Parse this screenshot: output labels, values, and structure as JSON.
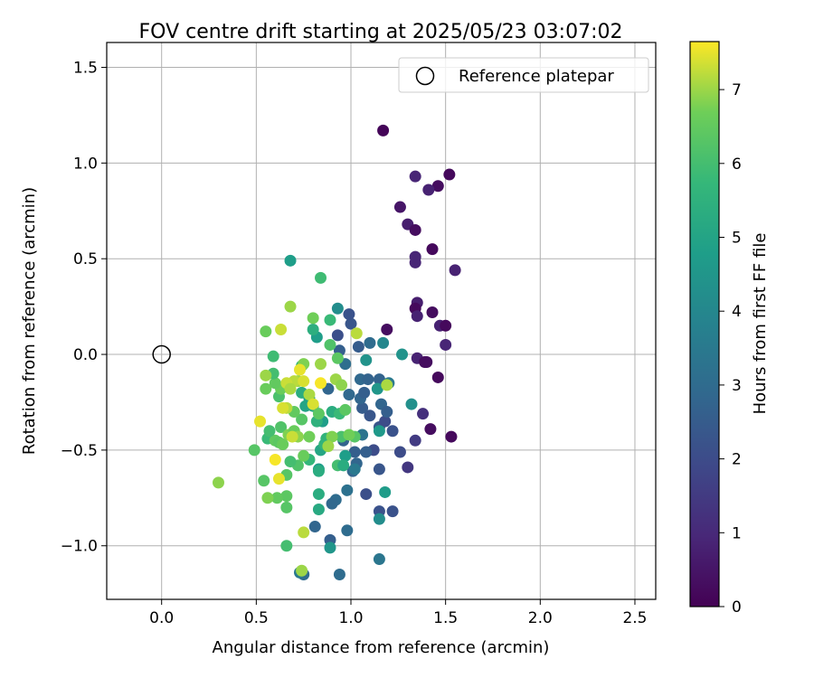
{
  "chart_data": {
    "type": "scatter",
    "title": "FOV centre drift starting at 2025/05/23 03:07:02",
    "xlabel": "Angular distance from reference (arcmin)",
    "ylabel": "Rotation from reference (arcmin)",
    "xlim": [
      -0.29,
      2.61
    ],
    "ylim": [
      -1.28,
      1.63
    ],
    "xticks": [
      0.0,
      0.5,
      1.0,
      1.5,
      2.0,
      2.5
    ],
    "xtick_labels": [
      "0.0",
      "0.5",
      "1.0",
      "1.5",
      "2.0",
      "2.5"
    ],
    "yticks": [
      -1.0,
      -0.5,
      0.0,
      0.5,
      1.0,
      1.5
    ],
    "ytick_labels": [
      "−1.0",
      "−0.5",
      "0.0",
      "0.5",
      "1.0",
      "1.5"
    ],
    "grid": true,
    "legend": {
      "placement": "top-right",
      "entries": [
        "Reference platepar"
      ]
    },
    "reference_point": {
      "name": "Reference platepar",
      "x": 0.0,
      "y": 0.0
    },
    "colorbar": {
      "label": "Hours from first FF file",
      "range": [
        0,
        7.65
      ],
      "ticks": [
        0,
        1,
        2,
        3,
        4,
        5,
        6,
        7
      ],
      "tick_labels": [
        "0",
        "1",
        "2",
        "3",
        "4",
        "5",
        "6",
        "7"
      ],
      "colormap": "viridis"
    },
    "points": [
      {
        "x": 1.17,
        "y": 1.17,
        "c": 0.1
      },
      {
        "x": 1.52,
        "y": 0.94,
        "c": 0.2
      },
      {
        "x": 1.34,
        "y": 0.93,
        "c": 0.9
      },
      {
        "x": 1.46,
        "y": 0.88,
        "c": 0.3
      },
      {
        "x": 1.41,
        "y": 0.86,
        "c": 0.8
      },
      {
        "x": 1.26,
        "y": 0.77,
        "c": 0.5
      },
      {
        "x": 1.3,
        "y": 0.68,
        "c": 0.7
      },
      {
        "x": 1.34,
        "y": 0.65,
        "c": 0.3
      },
      {
        "x": 1.43,
        "y": 0.55,
        "c": 0.2
      },
      {
        "x": 1.34,
        "y": 0.51,
        "c": 0.9
      },
      {
        "x": 1.34,
        "y": 0.48,
        "c": 0.9
      },
      {
        "x": 1.55,
        "y": 0.44,
        "c": 0.8
      },
      {
        "x": 1.35,
        "y": 0.27,
        "c": 0.7
      },
      {
        "x": 1.34,
        "y": 0.24,
        "c": 0.2
      },
      {
        "x": 1.43,
        "y": 0.22,
        "c": 0.3
      },
      {
        "x": 1.35,
        "y": 0.2,
        "c": 0.8
      },
      {
        "x": 1.47,
        "y": 0.15,
        "c": 0.8
      },
      {
        "x": 1.5,
        "y": 0.15,
        "c": 0.2
      },
      {
        "x": 1.19,
        "y": 0.13,
        "c": 0.3
      },
      {
        "x": 1.5,
        "y": 0.05,
        "c": 0.9
      },
      {
        "x": 1.35,
        "y": -0.02,
        "c": 0.8
      },
      {
        "x": 1.39,
        "y": -0.04,
        "c": 0.3
      },
      {
        "x": 1.4,
        "y": -0.04,
        "c": 0.3
      },
      {
        "x": 1.46,
        "y": -0.12,
        "c": 0.2
      },
      {
        "x": 1.38,
        "y": -0.31,
        "c": 1.2
      },
      {
        "x": 1.42,
        "y": -0.39,
        "c": 0.3
      },
      {
        "x": 1.53,
        "y": -0.43,
        "c": 0.2
      },
      {
        "x": 1.34,
        "y": -0.45,
        "c": 1.5
      },
      {
        "x": 1.3,
        "y": -0.59,
        "c": 1.4
      },
      {
        "x": 1.26,
        "y": -0.51,
        "c": 2.0
      },
      {
        "x": 1.22,
        "y": -0.82,
        "c": 2.2
      },
      {
        "x": 1.15,
        "y": -0.82,
        "c": 2.2
      },
      {
        "x": 1.15,
        "y": -0.6,
        "c": 2.3
      },
      {
        "x": 1.15,
        "y": -0.38,
        "c": 2.3
      },
      {
        "x": 1.18,
        "y": -0.35,
        "c": 2.0
      },
      {
        "x": 1.22,
        "y": -0.4,
        "c": 2.2
      },
      {
        "x": 1.12,
        "y": -0.5,
        "c": 2.0
      },
      {
        "x": 1.08,
        "y": -0.73,
        "c": 2.1
      },
      {
        "x": 1.08,
        "y": -0.51,
        "c": 2.6
      },
      {
        "x": 1.1,
        "y": -0.32,
        "c": 2.3
      },
      {
        "x": 1.06,
        "y": -0.28,
        "c": 2.5
      },
      {
        "x": 1.05,
        "y": -0.23,
        "c": 2.8
      },
      {
        "x": 1.07,
        "y": -0.2,
        "c": 2.6
      },
      {
        "x": 1.05,
        "y": -0.13,
        "c": 2.9
      },
      {
        "x": 1.09,
        "y": -0.13,
        "c": 2.7
      },
      {
        "x": 1.15,
        "y": -0.13,
        "c": 2.7
      },
      {
        "x": 1.16,
        "y": -0.26,
        "c": 2.8
      },
      {
        "x": 1.19,
        "y": -0.3,
        "c": 2.6
      },
      {
        "x": 1.2,
        "y": -0.15,
        "c": 3.5
      },
      {
        "x": 1.1,
        "y": 0.06,
        "c": 3.0
      },
      {
        "x": 1.04,
        "y": 0.04,
        "c": 2.5
      },
      {
        "x": 1.0,
        "y": 0.16,
        "c": 2.3
      },
      {
        "x": 0.99,
        "y": 0.21,
        "c": 2.2
      },
      {
        "x": 0.93,
        "y": 0.1,
        "c": 2.1
      },
      {
        "x": 0.94,
        "y": 0.02,
        "c": 2.6
      },
      {
        "x": 1.17,
        "y": 0.06,
        "c": 4.0
      },
      {
        "x": 1.08,
        "y": -0.03,
        "c": 4.4
      },
      {
        "x": 1.14,
        "y": -0.18,
        "c": 4.5
      },
      {
        "x": 1.32,
        "y": -0.26,
        "c": 4.3
      },
      {
        "x": 1.27,
        "y": 0.0,
        "c": 4.4
      },
      {
        "x": 0.93,
        "y": 0.24,
        "c": 4.2
      },
      {
        "x": 0.97,
        "y": -0.05,
        "c": 3.1
      },
      {
        "x": 0.99,
        "y": -0.21,
        "c": 2.9
      },
      {
        "x": 0.88,
        "y": -0.18,
        "c": 2.8
      },
      {
        "x": 0.96,
        "y": -0.45,
        "c": 2.7
      },
      {
        "x": 1.02,
        "y": -0.51,
        "c": 2.6
      },
      {
        "x": 1.03,
        "y": -0.57,
        "c": 2.8
      },
      {
        "x": 1.01,
        "y": -0.61,
        "c": 2.8
      },
      {
        "x": 0.98,
        "y": -0.71,
        "c": 3.2
      },
      {
        "x": 0.92,
        "y": -0.76,
        "c": 3.0
      },
      {
        "x": 0.9,
        "y": -0.78,
        "c": 2.9
      },
      {
        "x": 0.98,
        "y": -0.92,
        "c": 3.0
      },
      {
        "x": 0.89,
        "y": -0.97,
        "c": 2.6
      },
      {
        "x": 0.81,
        "y": -0.9,
        "c": 2.8
      },
      {
        "x": 0.75,
        "y": -1.15,
        "c": 3.0
      },
      {
        "x": 0.73,
        "y": -1.14,
        "c": 3.5
      },
      {
        "x": 0.94,
        "y": -1.15,
        "c": 3.0
      },
      {
        "x": 1.15,
        "y": -1.07,
        "c": 3.4
      },
      {
        "x": 1.15,
        "y": -0.86,
        "c": 4.2
      },
      {
        "x": 1.18,
        "y": -0.72,
        "c": 4.7
      },
      {
        "x": 1.02,
        "y": -0.6,
        "c": 3.5
      },
      {
        "x": 1.06,
        "y": -0.42,
        "c": 3.3
      },
      {
        "x": 1.15,
        "y": -0.4,
        "c": 4.6
      },
      {
        "x": 0.89,
        "y": -1.01,
        "c": 4.5
      },
      {
        "x": 0.83,
        "y": -0.81,
        "c": 5.2
      },
      {
        "x": 0.83,
        "y": -0.73,
        "c": 5.3
      },
      {
        "x": 0.83,
        "y": -0.6,
        "c": 4.8
      },
      {
        "x": 0.83,
        "y": -0.61,
        "c": 5.3
      },
      {
        "x": 0.84,
        "y": -0.5,
        "c": 5.1
      },
      {
        "x": 0.86,
        "y": -0.47,
        "c": 5.6
      },
      {
        "x": 0.85,
        "y": -0.35,
        "c": 4.8
      },
      {
        "x": 0.82,
        "y": -0.35,
        "c": 5.5
      },
      {
        "x": 0.8,
        "y": -0.27,
        "c": 5.2
      },
      {
        "x": 0.78,
        "y": -0.23,
        "c": 4.8
      },
      {
        "x": 0.76,
        "y": -0.27,
        "c": 5.0
      },
      {
        "x": 0.74,
        "y": -0.2,
        "c": 5.3
      },
      {
        "x": 0.74,
        "y": -0.06,
        "c": 5.6
      },
      {
        "x": 0.82,
        "y": 0.09,
        "c": 4.8
      },
      {
        "x": 0.8,
        "y": 0.13,
        "c": 5.4
      },
      {
        "x": 0.84,
        "y": 0.4,
        "c": 5.9
      },
      {
        "x": 0.68,
        "y": 0.49,
        "c": 4.8
      },
      {
        "x": 0.89,
        "y": 0.18,
        "c": 5.8
      },
      {
        "x": 0.89,
        "y": 0.05,
        "c": 6.2
      },
      {
        "x": 0.93,
        "y": -0.02,
        "c": 6.4
      },
      {
        "x": 0.9,
        "y": -0.3,
        "c": 5.3
      },
      {
        "x": 0.94,
        "y": -0.31,
        "c": 5.8
      },
      {
        "x": 0.97,
        "y": -0.29,
        "c": 6.4
      },
      {
        "x": 0.95,
        "y": -0.43,
        "c": 6.1
      },
      {
        "x": 0.97,
        "y": -0.53,
        "c": 4.8
      },
      {
        "x": 0.93,
        "y": -0.58,
        "c": 6.0
      },
      {
        "x": 0.96,
        "y": -0.58,
        "c": 5.3
      },
      {
        "x": 0.87,
        "y": -0.44,
        "c": 5.6
      },
      {
        "x": 0.78,
        "y": -0.55,
        "c": 5.7
      },
      {
        "x": 0.72,
        "y": -0.58,
        "c": 6.2
      },
      {
        "x": 0.68,
        "y": -0.56,
        "c": 6.0
      },
      {
        "x": 0.66,
        "y": -0.63,
        "c": 6.3
      },
      {
        "x": 0.66,
        "y": -0.74,
        "c": 6.4
      },
      {
        "x": 0.66,
        "y": -0.8,
        "c": 6.3
      },
      {
        "x": 0.66,
        "y": -1.0,
        "c": 6.0
      },
      {
        "x": 0.61,
        "y": -0.75,
        "c": 6.5
      },
      {
        "x": 0.56,
        "y": -0.75,
        "c": 6.8
      },
      {
        "x": 0.54,
        "y": -0.66,
        "c": 6.3
      },
      {
        "x": 0.49,
        "y": -0.5,
        "c": 6.3
      },
      {
        "x": 0.56,
        "y": -0.44,
        "c": 5.8
      },
      {
        "x": 0.6,
        "y": -0.45,
        "c": 6.5
      },
      {
        "x": 0.57,
        "y": -0.4,
        "c": 6.0
      },
      {
        "x": 0.63,
        "y": -0.38,
        "c": 6.2
      },
      {
        "x": 0.62,
        "y": -0.46,
        "c": 6.4
      },
      {
        "x": 0.64,
        "y": -0.47,
        "c": 6.6
      },
      {
        "x": 0.67,
        "y": -0.42,
        "c": 6.8
      },
      {
        "x": 0.7,
        "y": -0.4,
        "c": 6.6
      },
      {
        "x": 0.72,
        "y": -0.43,
        "c": 6.9
      },
      {
        "x": 0.75,
        "y": -0.53,
        "c": 6.6
      },
      {
        "x": 0.74,
        "y": -0.34,
        "c": 6.3
      },
      {
        "x": 0.7,
        "y": -0.3,
        "c": 6.5
      },
      {
        "x": 0.66,
        "y": -0.28,
        "c": 7.2
      },
      {
        "x": 0.64,
        "y": -0.28,
        "c": 7.4
      },
      {
        "x": 0.62,
        "y": -0.22,
        "c": 6.1
      },
      {
        "x": 0.63,
        "y": -0.18,
        "c": 6.6
      },
      {
        "x": 0.6,
        "y": -0.15,
        "c": 6.5
      },
      {
        "x": 0.59,
        "y": -0.1,
        "c": 6.0
      },
      {
        "x": 0.59,
        "y": -0.01,
        "c": 5.9
      },
      {
        "x": 0.55,
        "y": -0.11,
        "c": 7.0
      },
      {
        "x": 0.55,
        "y": -0.18,
        "c": 6.6
      },
      {
        "x": 0.52,
        "y": -0.35,
        "c": 7.5
      },
      {
        "x": 0.55,
        "y": 0.12,
        "c": 6.6
      },
      {
        "x": 0.63,
        "y": 0.13,
        "c": 7.3
      },
      {
        "x": 0.68,
        "y": 0.25,
        "c": 7.0
      },
      {
        "x": 0.8,
        "y": 0.19,
        "c": 6.7
      },
      {
        "x": 0.84,
        "y": -0.05,
        "c": 7.0
      },
      {
        "x": 0.75,
        "y": -0.05,
        "c": 6.8
      },
      {
        "x": 0.73,
        "y": -0.08,
        "c": 7.5
      },
      {
        "x": 0.72,
        "y": -0.14,
        "c": 7.0
      },
      {
        "x": 0.7,
        "y": -0.14,
        "c": 7.2
      },
      {
        "x": 0.66,
        "y": -0.15,
        "c": 7.3
      },
      {
        "x": 0.68,
        "y": -0.18,
        "c": 7.1
      },
      {
        "x": 0.75,
        "y": -0.14,
        "c": 7.4
      },
      {
        "x": 0.78,
        "y": -0.21,
        "c": 7.1
      },
      {
        "x": 0.8,
        "y": -0.26,
        "c": 7.4
      },
      {
        "x": 0.84,
        "y": -0.15,
        "c": 7.6
      },
      {
        "x": 0.83,
        "y": -0.31,
        "c": 6.4
      },
      {
        "x": 0.92,
        "y": -0.13,
        "c": 7.0
      },
      {
        "x": 0.95,
        "y": -0.16,
        "c": 6.9
      },
      {
        "x": 1.03,
        "y": 0.11,
        "c": 7.2
      },
      {
        "x": 1.19,
        "y": -0.16,
        "c": 7.1
      },
      {
        "x": 1.02,
        "y": -0.43,
        "c": 6.3
      },
      {
        "x": 0.99,
        "y": -0.42,
        "c": 6.7
      },
      {
        "x": 0.9,
        "y": -0.43,
        "c": 6.8
      },
      {
        "x": 0.88,
        "y": -0.48,
        "c": 7.0
      },
      {
        "x": 0.78,
        "y": -0.43,
        "c": 6.7
      },
      {
        "x": 0.69,
        "y": -0.43,
        "c": 7.3
      },
      {
        "x": 0.6,
        "y": -0.55,
        "c": 7.6
      },
      {
        "x": 0.62,
        "y": -0.65,
        "c": 7.5
      },
      {
        "x": 0.75,
        "y": -0.93,
        "c": 7.2
      },
      {
        "x": 0.74,
        "y": -1.13,
        "c": 7.0
      },
      {
        "x": 0.3,
        "y": -0.67,
        "c": 6.9
      }
    ]
  }
}
